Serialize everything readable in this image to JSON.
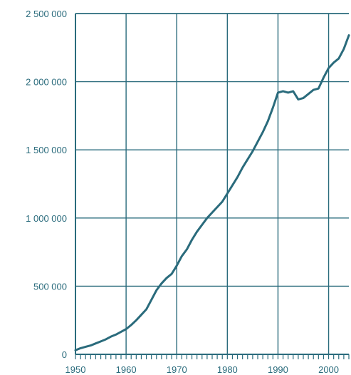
{
  "chart_data": {
    "type": "line",
    "title": "",
    "xlabel": "",
    "ylabel": "",
    "xlim": [
      1950,
      2004
    ],
    "ylim": [
      0,
      2500000
    ],
    "grid": true,
    "legend": "none",
    "x_ticks": [
      1950,
      1960,
      1970,
      1980,
      1990,
      2000
    ],
    "x_tick_labels": [
      "1950",
      "1960",
      "1970",
      "1980",
      "1990",
      "2000"
    ],
    "y_ticks": [
      0,
      500000,
      1000000,
      1500000,
      2000000,
      2500000
    ],
    "y_tick_labels": [
      "0",
      "500 000",
      "1 000 000",
      "1 500 000",
      "2 000 000",
      "2 500 000"
    ],
    "colors": {
      "line": "#2a6b7c",
      "axis": "#2a6b7c",
      "text": "#2a6b7c"
    },
    "series": [
      {
        "x": [
          1950,
          1951,
          1952,
          1953,
          1954,
          1955,
          1956,
          1957,
          1958,
          1959,
          1960,
          1961,
          1962,
          1963,
          1964,
          1965,
          1966,
          1967,
          1968,
          1969,
          1970,
          1971,
          1972,
          1973,
          1974,
          1975,
          1976,
          1977,
          1978,
          1979,
          1980,
          1981,
          1982,
          1983,
          1984,
          1985,
          1986,
          1987,
          1988,
          1989,
          1990,
          1991,
          1992,
          1993,
          1994,
          1995,
          1996,
          1997,
          1998,
          1999,
          2000,
          2001,
          2002,
          2003,
          2004
        ],
        "y": [
          30000,
          45000,
          55000,
          65000,
          80000,
          95000,
          110000,
          130000,
          145000,
          165000,
          185000,
          215000,
          250000,
          290000,
          330000,
          400000,
          470000,
          520000,
          560000,
          590000,
          650000,
          720000,
          770000,
          840000,
          900000,
          950000,
          1000000,
          1040000,
          1080000,
          1120000,
          1180000,
          1240000,
          1300000,
          1370000,
          1430000,
          1490000,
          1560000,
          1630000,
          1710000,
          1810000,
          1920000,
          1930000,
          1920000,
          1930000,
          1870000,
          1880000,
          1910000,
          1940000,
          1950000,
          2030000,
          2100000,
          2140000,
          2170000,
          2240000,
          2340000
        ]
      }
    ]
  }
}
